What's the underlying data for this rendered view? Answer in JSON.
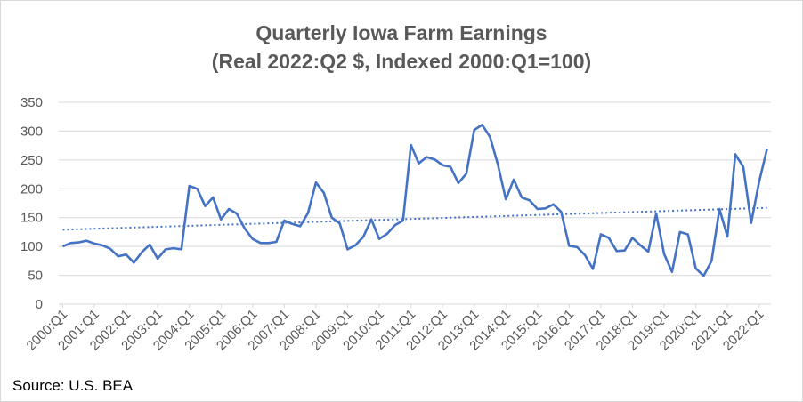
{
  "chart_data": {
    "type": "line",
    "title": "Quarterly Iowa Farm Earnings",
    "subtitle": "(Real 2022:Q2 $, Indexed 2000:Q1=100)",
    "source": "Source: U.S. BEA",
    "ylim": [
      0,
      350
    ],
    "yticks": [
      "0",
      "50",
      "100",
      "150",
      "200",
      "250",
      "300",
      "350"
    ],
    "xtick_labels": [
      "2000:Q1",
      "2001:Q1",
      "2002:Q1",
      "2003:Q1",
      "2004:Q1",
      "2005:Q1",
      "2006:Q1",
      "2007:Q1",
      "2008:Q1",
      "2009:Q1",
      "2010:Q1",
      "2011:Q1",
      "2012:Q1",
      "2013:Q1",
      "2014:Q1",
      "2015:Q1",
      "2016:Q1",
      "2017:Q1",
      "2018:Q1",
      "2019:Q1",
      "2020:Q1",
      "2021:Q1",
      "2022:Q1"
    ],
    "grid": true,
    "colors": {
      "series": "#4472c4",
      "grid": "#d9d9d9",
      "text": "#595959"
    },
    "series": [
      {
        "values": [
          100,
          106,
          107,
          110,
          105,
          102,
          96,
          83,
          86,
          72,
          90,
          103,
          79,
          95,
          97,
          95,
          205,
          200,
          170,
          185,
          147,
          165,
          157,
          131,
          113,
          106,
          106,
          108,
          145,
          139,
          135,
          158,
          211,
          193,
          150,
          140,
          95,
          102,
          117,
          147,
          113,
          122,
          137,
          145,
          276,
          244,
          255,
          251,
          241,
          238,
          210,
          226,
          302,
          311,
          290,
          242,
          182,
          216,
          185,
          180,
          165,
          166,
          173,
          160,
          101,
          99,
          85,
          61,
          121,
          115,
          92,
          93,
          115,
          102,
          91,
          157,
          87,
          56,
          125,
          121,
          62,
          49,
          75,
          165,
          117,
          260,
          238,
          141,
          212,
          269
        ],
        "unit_per_point": "quarter"
      }
    ],
    "trendline": {
      "style": "dotted linear",
      "start": 129,
      "end": 167
    }
  }
}
